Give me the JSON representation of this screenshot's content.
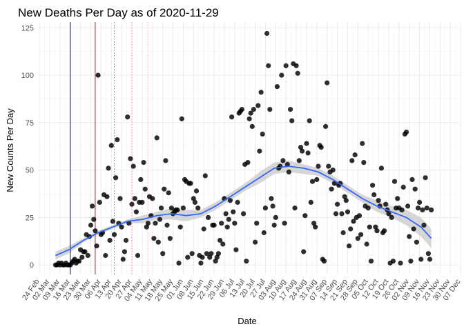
{
  "chart_data": {
    "type": "scatter",
    "title": "New Deaths Per Day as of 2020-11-29",
    "xlabel": "Date",
    "ylabel": "New Counts Per Day",
    "xlim_days": [
      -1,
      286
    ],
    "ylim": [
      -5,
      128
    ],
    "grid": true,
    "legend": "none",
    "y_ticks": [
      0,
      25,
      50,
      75,
      100,
      125
    ],
    "x_tick_labels": [
      "24 Feb",
      "02 Mar",
      "09 Mar",
      "16 Mar",
      "23 Mar",
      "30 Mar",
      "06 Apr",
      "13 Apr",
      "20 Apr",
      "27 Apr",
      "04 May",
      "11 May",
      "18 May",
      "25 May",
      "01 Jun",
      "08 Jun",
      "15 Jun",
      "22 Jun",
      "29 Jun",
      "06 Jul",
      "13 Jul",
      "20 Jul",
      "27 Jul",
      "03 Aug",
      "10 Aug",
      "17 Aug",
      "24 Aug",
      "31 Aug",
      "07 Sep",
      "14 Sep",
      "21 Sep",
      "28 Sep",
      "05 Oct",
      "12 Oct",
      "19 Oct",
      "26 Oct",
      "02 Nov",
      "09 Nov",
      "16 Nov",
      "23 Nov",
      "30 Nov",
      "07 Dec"
    ],
    "reference_lines": [
      {
        "day": 21,
        "color": "#00008b",
        "style": "solid"
      },
      {
        "day": 38,
        "color": "#b22222",
        "style": "solid"
      },
      {
        "day": 51,
        "color": "#cd5c5c",
        "style": "dotted"
      },
      {
        "day": 63,
        "color": "#ff69b4",
        "style": "dotted"
      },
      {
        "day": 74,
        "color": "#ffb6c1",
        "style": "dotted"
      }
    ],
    "points_day_value": [
      [
        11,
        0
      ],
      [
        12,
        0
      ],
      [
        13,
        1
      ],
      [
        14,
        0
      ],
      [
        15,
        1
      ],
      [
        16,
        0
      ],
      [
        17,
        0
      ],
      [
        18,
        1
      ],
      [
        19,
        0
      ],
      [
        20,
        0
      ],
      [
        21,
        0
      ],
      [
        22,
        1
      ],
      [
        23,
        2
      ],
      [
        24,
        3
      ],
      [
        25,
        1
      ],
      [
        26,
        2
      ],
      [
        27,
        2
      ],
      [
        28,
        8
      ],
      [
        29,
        4
      ],
      [
        30,
        7
      ],
      [
        31,
        7
      ],
      [
        32,
        16
      ],
      [
        33,
        5
      ],
      [
        34,
        15
      ],
      [
        35,
        21
      ],
      [
        36,
        31
      ],
      [
        37,
        24
      ],
      [
        38,
        18
      ],
      [
        39,
        10
      ],
      [
        40,
        100
      ],
      [
        41,
        33
      ],
      [
        42,
        16
      ],
      [
        43,
        17
      ],
      [
        44,
        37
      ],
      [
        45,
        5
      ],
      [
        46,
        36
      ],
      [
        47,
        51
      ],
      [
        48,
        13
      ],
      [
        49,
        63
      ],
      [
        50,
        23
      ],
      [
        51,
        16
      ],
      [
        52,
        46
      ],
      [
        53,
        66
      ],
      [
        54,
        22
      ],
      [
        55,
        35
      ],
      [
        56,
        20
      ],
      [
        57,
        3
      ],
      [
        58,
        7
      ],
      [
        59,
        13
      ],
      [
        60,
        78
      ],
      [
        61,
        22
      ],
      [
        62,
        56
      ],
      [
        63,
        32
      ],
      [
        64,
        52
      ],
      [
        65,
        35
      ],
      [
        66,
        28
      ],
      [
        67,
        5
      ],
      [
        68,
        33
      ],
      [
        69,
        45
      ],
      [
        70,
        33
      ],
      [
        71,
        54
      ],
      [
        72,
        40
      ],
      [
        73,
        20
      ],
      [
        74,
        22
      ],
      [
        75,
        36
      ],
      [
        76,
        26
      ],
      [
        77,
        35
      ],
      [
        78,
        14
      ],
      [
        79,
        22
      ],
      [
        80,
        67
      ],
      [
        81,
        12
      ],
      [
        82,
        24
      ],
      [
        83,
        30
      ],
      [
        84,
        6
      ],
      [
        85,
        40
      ],
      [
        86,
        55
      ],
      [
        87,
        21
      ],
      [
        88,
        38
      ],
      [
        89,
        14
      ],
      [
        90,
        30
      ],
      [
        91,
        27
      ],
      [
        92,
        28
      ],
      [
        93,
        29
      ],
      [
        94,
        29
      ],
      [
        95,
        1
      ],
      [
        96,
        20
      ],
      [
        97,
        77
      ],
      [
        98,
        30
      ],
      [
        99,
        45
      ],
      [
        100,
        44
      ],
      [
        101,
        4
      ],
      [
        102,
        43
      ],
      [
        103,
        43
      ],
      [
        104,
        6
      ],
      [
        105,
        35
      ],
      [
        106,
        33
      ],
      [
        107,
        39
      ],
      [
        108,
        30
      ],
      [
        109,
        5
      ],
      [
        110,
        1
      ],
      [
        111,
        4
      ],
      [
        112,
        19
      ],
      [
        113,
        47
      ],
      [
        114,
        6
      ],
      [
        115,
        25
      ],
      [
        116,
        4
      ],
      [
        117,
        6
      ],
      [
        118,
        21
      ],
      [
        119,
        21
      ],
      [
        120,
        2
      ],
      [
        121,
        4
      ],
      [
        122,
        6
      ],
      [
        123,
        13
      ],
      [
        124,
        22
      ],
      [
        125,
        11
      ],
      [
        126,
        35
      ],
      [
        127,
        27
      ],
      [
        128,
        20
      ],
      [
        129,
        24
      ],
      [
        130,
        34
      ],
      [
        131,
        78
      ],
      [
        132,
        28
      ],
      [
        133,
        22
      ],
      [
        134,
        8
      ],
      [
        135,
        33
      ],
      [
        136,
        80
      ],
      [
        137,
        81
      ],
      [
        138,
        82
      ],
      [
        139,
        27
      ],
      [
        140,
        53
      ],
      [
        141,
        2
      ],
      [
        142,
        54
      ],
      [
        143,
        77
      ],
      [
        144,
        80
      ],
      [
        145,
        73
      ],
      [
        146,
        82
      ],
      [
        147,
        12
      ],
      [
        148,
        22
      ],
      [
        149,
        84
      ],
      [
        150,
        60
      ],
      [
        151,
        91
      ],
      [
        152,
        69
      ],
      [
        153,
        17
      ],
      [
        154,
        30
      ],
      [
        155,
        122
      ],
      [
        156,
        105
      ],
      [
        157,
        82
      ],
      [
        158,
        35
      ],
      [
        159,
        31
      ],
      [
        160,
        21
      ],
      [
        161,
        25
      ],
      [
        162,
        94
      ],
      [
        163,
        51
      ],
      [
        164,
        52
      ],
      [
        165,
        100
      ],
      [
        166,
        55
      ],
      [
        167,
        22
      ],
      [
        168,
        105
      ],
      [
        169,
        53
      ],
      [
        170,
        49
      ],
      [
        171,
        82
      ],
      [
        172,
        76
      ],
      [
        173,
        106
      ],
      [
        174,
        30
      ],
      [
        175,
        105
      ],
      [
        176,
        101
      ],
      [
        177,
        55
      ],
      [
        178,
        62
      ],
      [
        179,
        60
      ],
      [
        180,
        7
      ],
      [
        181,
        26
      ],
      [
        182,
        64
      ],
      [
        183,
        59
      ],
      [
        184,
        76
      ],
      [
        185,
        33
      ],
      [
        186,
        44
      ],
      [
        187,
        22
      ],
      [
        188,
        20
      ],
      [
        189,
        45
      ],
      [
        190,
        52
      ],
      [
        191,
        63
      ],
      [
        192,
        62
      ],
      [
        193,
        3
      ],
      [
        194,
        2
      ],
      [
        195,
        73
      ],
      [
        196,
        96
      ],
      [
        197,
        52
      ],
      [
        198,
        49
      ],
      [
        199,
        40
      ],
      [
        200,
        50
      ],
      [
        201,
        43
      ],
      [
        202,
        27
      ],
      [
        203,
        32
      ],
      [
        204,
        42
      ],
      [
        205,
        43
      ],
      [
        206,
        27
      ],
      [
        207,
        17
      ],
      [
        208,
        36
      ],
      [
        209,
        34
      ],
      [
        210,
        28
      ],
      [
        211,
        10
      ],
      [
        212,
        19
      ],
      [
        213,
        55
      ],
      [
        214,
        23
      ],
      [
        215,
        58
      ],
      [
        216,
        25
      ],
      [
        217,
        14
      ],
      [
        218,
        26
      ],
      [
        219,
        16
      ],
      [
        220,
        64
      ],
      [
        221,
        54
      ],
      [
        222,
        31
      ],
      [
        223,
        11
      ],
      [
        224,
        30
      ],
      [
        225,
        20
      ],
      [
        226,
        2
      ],
      [
        227,
        42
      ],
      [
        228,
        37
      ],
      [
        229,
        20
      ],
      [
        230,
        18
      ],
      [
        231,
        34
      ],
      [
        232,
        31
      ],
      [
        233,
        51
      ],
      [
        234,
        17
      ],
      [
        235,
        18
      ],
      [
        236,
        32
      ],
      [
        237,
        29
      ],
      [
        238,
        27
      ],
      [
        239,
        1
      ],
      [
        240,
        25
      ],
      [
        241,
        2
      ],
      [
        242,
        44
      ],
      [
        243,
        30
      ],
      [
        244,
        35
      ],
      [
        245,
        30
      ],
      [
        246,
        1
      ],
      [
        247,
        29
      ],
      [
        248,
        41
      ],
      [
        249,
        69
      ],
      [
        250,
        70
      ],
      [
        251,
        31
      ],
      [
        252,
        15
      ],
      [
        253,
        2
      ],
      [
        254,
        45
      ],
      [
        255,
        19
      ],
      [
        256,
        40
      ],
      [
        257,
        12
      ],
      [
        258,
        30
      ],
      [
        259,
        33
      ],
      [
        260,
        3
      ],
      [
        261,
        29
      ],
      [
        262,
        21
      ],
      [
        263,
        46
      ],
      [
        264,
        30
      ],
      [
        265,
        6
      ],
      [
        266,
        3
      ],
      [
        267,
        29
      ]
    ],
    "smooth_day": [
      11,
      20,
      30,
      40,
      50,
      60,
      70,
      80,
      90,
      100,
      110,
      120,
      130,
      140,
      150,
      160,
      170,
      180,
      190,
      200,
      210,
      220,
      230,
      240,
      250,
      260,
      267
    ],
    "smooth_value": [
      5,
      8,
      13,
      17,
      20,
      23,
      24,
      26,
      27,
      26,
      27,
      31,
      36,
      41,
      46,
      51,
      52,
      51,
      49,
      45,
      40,
      35,
      31,
      28,
      25,
      20,
      14
    ],
    "smooth_upper": [
      7,
      10,
      14,
      18,
      21,
      24,
      26,
      28,
      30,
      29,
      29,
      33,
      38,
      43,
      49,
      54,
      55,
      53,
      51,
      47,
      42,
      37,
      34,
      31,
      29,
      25,
      19
    ],
    "smooth_lower": [
      3,
      6,
      12,
      16,
      19,
      22,
      22,
      24,
      24,
      23,
      25,
      29,
      34,
      39,
      43,
      48,
      49,
      48,
      47,
      43,
      38,
      33,
      28,
      25,
      21,
      15,
      9
    ]
  }
}
